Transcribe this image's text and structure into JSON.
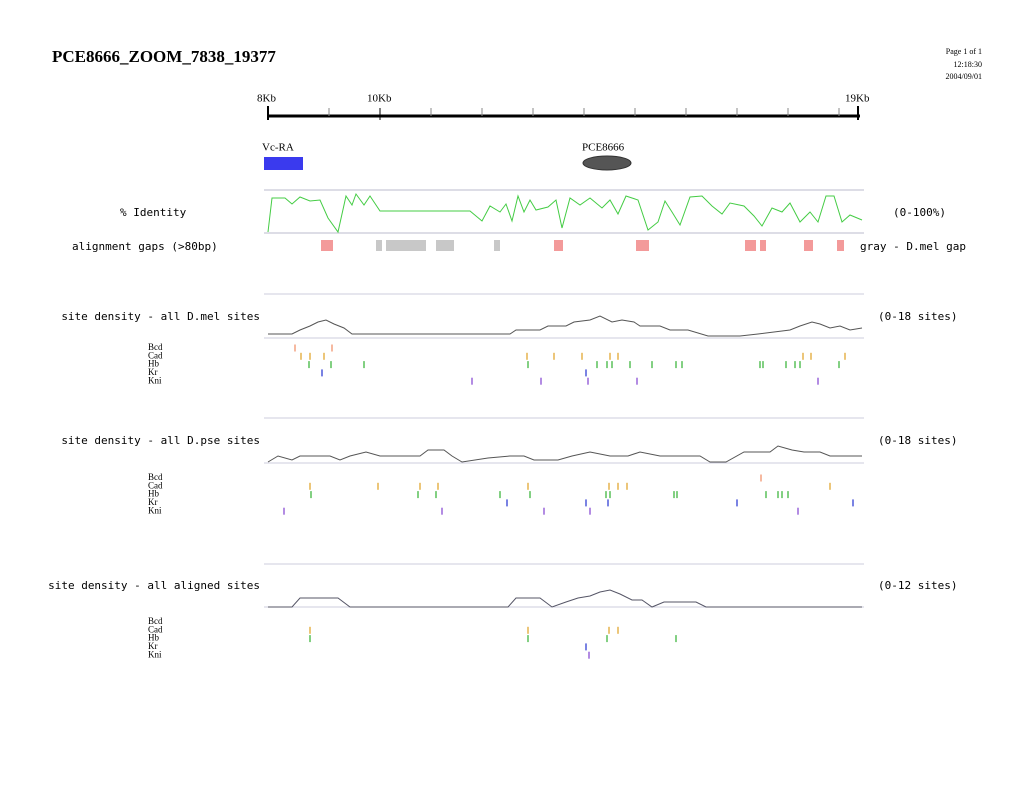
{
  "header": {
    "title": "PCE8666_ZOOM_7838_19377",
    "page": "Page 1 of 1",
    "time": "12:18:30",
    "date": "2004/09/01"
  },
  "ruler": {
    "labels": [
      "8Kb",
      "10Kb",
      "19Kb"
    ]
  },
  "features": [
    "Vc-RA",
    "PCE8666"
  ],
  "identity": {
    "label": "% Identity",
    "range": "(0-100%)"
  },
  "gaps": {
    "label": "alignment gaps (>80bp)",
    "note": "gray - D.mel gap"
  },
  "tracks": [
    {
      "label": "site density - all D.mel sites",
      "range": "(0-18 sites)",
      "factors": [
        "Bcd",
        "Cad",
        "Hb",
        "Kr",
        "Kni"
      ]
    },
    {
      "label": "site density - all D.pse sites",
      "range": "(0-18 sites)",
      "factors": [
        "Bcd",
        "Cad",
        "Hb",
        "Kr",
        "Kni"
      ]
    },
    {
      "label": "site density - all aligned sites",
      "range": "(0-12 sites)",
      "factors": [
        "Bcd",
        "Cad",
        "Hb",
        "Kr",
        "Kni"
      ]
    }
  ]
}
